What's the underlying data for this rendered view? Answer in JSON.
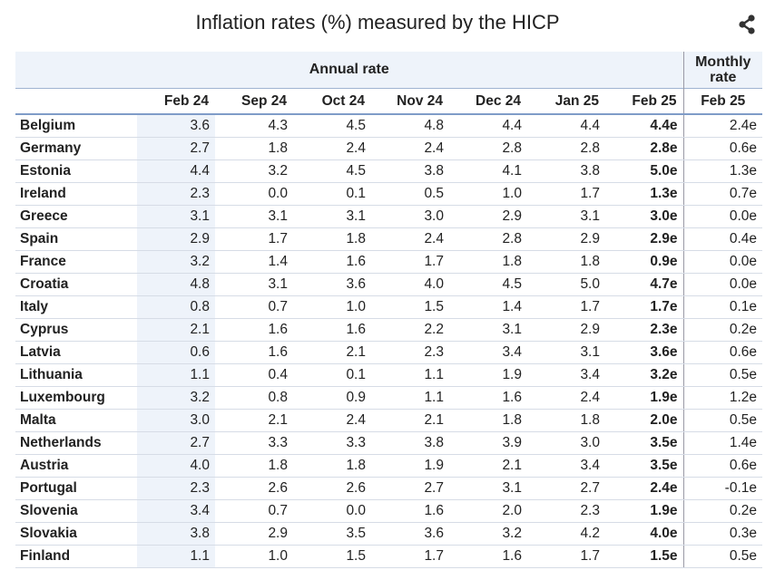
{
  "title": "Inflation rates (%) measured by the HICP",
  "share_icon": "share-icon",
  "header": {
    "annual_label": "Annual rate",
    "monthly_label_line1": "Monthly",
    "monthly_label_line2": "rate",
    "columns": [
      "Feb 24",
      "Sep 24",
      "Oct 24",
      "Nov 24",
      "Dec 24",
      "Jan 25",
      "Feb 25"
    ],
    "monthly_column": "Feb 25"
  },
  "rows": [
    {
      "country": "Belgium",
      "values": [
        "3.6",
        "4.3",
        "4.5",
        "4.8",
        "4.4",
        "4.4",
        "4.4e"
      ],
      "monthly": "2.4e"
    },
    {
      "country": "Germany",
      "values": [
        "2.7",
        "1.8",
        "2.4",
        "2.4",
        "2.8",
        "2.8",
        "2.8e"
      ],
      "monthly": "0.6e"
    },
    {
      "country": "Estonia",
      "values": [
        "4.4",
        "3.2",
        "4.5",
        "3.8",
        "4.1",
        "3.8",
        "5.0e"
      ],
      "monthly": "1.3e"
    },
    {
      "country": "Ireland",
      "values": [
        "2.3",
        "0.0",
        "0.1",
        "0.5",
        "1.0",
        "1.7",
        "1.3e"
      ],
      "monthly": "0.7e"
    },
    {
      "country": "Greece",
      "values": [
        "3.1",
        "3.1",
        "3.1",
        "3.0",
        "2.9",
        "3.1",
        "3.0e"
      ],
      "monthly": "0.0e"
    },
    {
      "country": "Spain",
      "values": [
        "2.9",
        "1.7",
        "1.8",
        "2.4",
        "2.8",
        "2.9",
        "2.9e"
      ],
      "monthly": "0.4e"
    },
    {
      "country": "France",
      "values": [
        "3.2",
        "1.4",
        "1.6",
        "1.7",
        "1.8",
        "1.8",
        "0.9e"
      ],
      "monthly": "0.0e"
    },
    {
      "country": "Croatia",
      "values": [
        "4.8",
        "3.1",
        "3.6",
        "4.0",
        "4.5",
        "5.0",
        "4.7e"
      ],
      "monthly": "0.0e"
    },
    {
      "country": "Italy",
      "values": [
        "0.8",
        "0.7",
        "1.0",
        "1.5",
        "1.4",
        "1.7",
        "1.7e"
      ],
      "monthly": "0.1e"
    },
    {
      "country": "Cyprus",
      "values": [
        "2.1",
        "1.6",
        "1.6",
        "2.2",
        "3.1",
        "2.9",
        "2.3e"
      ],
      "monthly": "0.2e"
    },
    {
      "country": "Latvia",
      "values": [
        "0.6",
        "1.6",
        "2.1",
        "2.3",
        "3.4",
        "3.1",
        "3.6e"
      ],
      "monthly": "0.6e"
    },
    {
      "country": "Lithuania",
      "values": [
        "1.1",
        "0.4",
        "0.1",
        "1.1",
        "1.9",
        "3.4",
        "3.2e"
      ],
      "monthly": "0.5e"
    },
    {
      "country": "Luxembourg",
      "values": [
        "3.2",
        "0.8",
        "0.9",
        "1.1",
        "1.6",
        "2.4",
        "1.9e"
      ],
      "monthly": "1.2e"
    },
    {
      "country": "Malta",
      "values": [
        "3.0",
        "2.1",
        "2.4",
        "2.1",
        "1.8",
        "1.8",
        "2.0e"
      ],
      "monthly": "0.5e"
    },
    {
      "country": "Netherlands",
      "values": [
        "2.7",
        "3.3",
        "3.3",
        "3.8",
        "3.9",
        "3.0",
        "3.5e"
      ],
      "monthly": "1.4e"
    },
    {
      "country": "Austria",
      "values": [
        "4.0",
        "1.8",
        "1.8",
        "1.9",
        "2.1",
        "3.4",
        "3.5e"
      ],
      "monthly": "0.6e"
    },
    {
      "country": "Portugal",
      "values": [
        "2.3",
        "2.6",
        "2.6",
        "2.7",
        "3.1",
        "2.7",
        "2.4e"
      ],
      "monthly": "-0.1e"
    },
    {
      "country": "Slovenia",
      "values": [
        "3.4",
        "0.7",
        "0.0",
        "1.6",
        "2.0",
        "2.3",
        "1.9e"
      ],
      "monthly": "0.2e"
    },
    {
      "country": "Slovakia",
      "values": [
        "3.8",
        "2.9",
        "3.5",
        "3.6",
        "3.2",
        "4.2",
        "4.0e"
      ],
      "monthly": "0.3e"
    },
    {
      "country": "Finland",
      "values": [
        "1.1",
        "1.0",
        "1.5",
        "1.7",
        "1.6",
        "1.7",
        "1.5e"
      ],
      "monthly": "0.5e"
    }
  ],
  "colors": {
    "header_bg": "#eef3fa",
    "shaded_cell_bg": "#eef3fa",
    "row_border": "#d6dce6",
    "header_border": "#7f9cc8"
  }
}
